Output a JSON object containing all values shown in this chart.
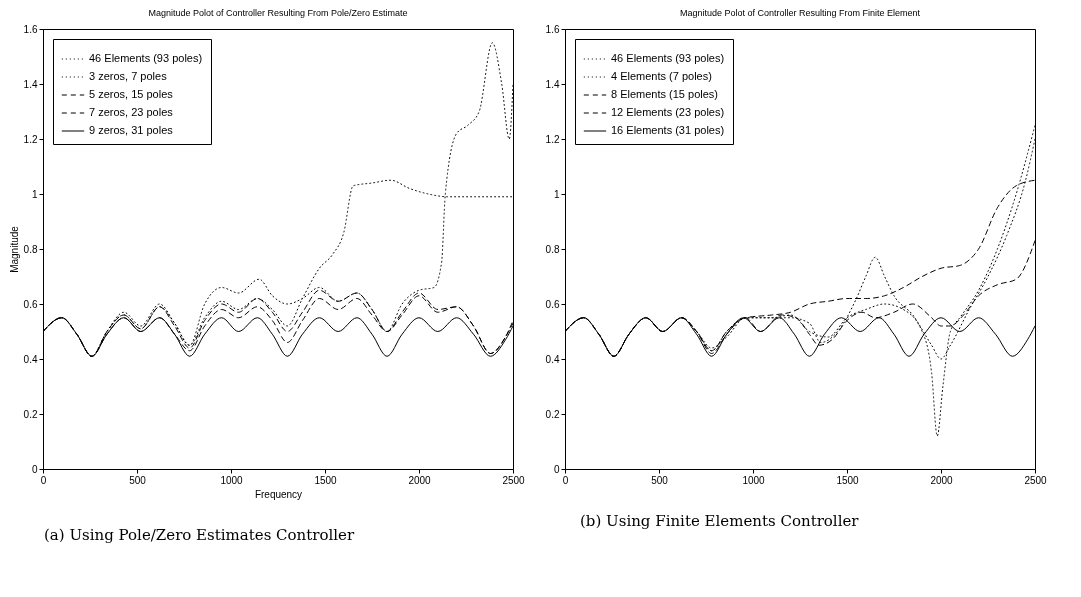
{
  "chart_data": [
    {
      "type": "line",
      "title": "Magnitude Polot of Controller Resulting From Pole/Zero Estimate",
      "xlabel": "Frequency",
      "ylabel": "Magnitude",
      "annotations": [
        "(a) Using Pole/Zero Estimates Controller"
      ],
      "xlim": [
        0,
        2500
      ],
      "xticks": [
        0,
        500,
        1000,
        1500,
        2000,
        2500
      ],
      "ylim": [
        0,
        1.6
      ],
      "yticks": [
        0,
        0.2,
        0.4,
        0.6,
        0.8,
        1,
        1.2,
        1.4,
        1.6
      ],
      "legend": "top left",
      "series": [
        {
          "name": "46 Elements (93 poles)",
          "color": "#000000",
          "line_style": "dotted",
          "x": [
            0,
            100,
            180,
            260,
            340,
            430,
            520,
            620,
            700,
            780,
            860,
            950,
            1040,
            1150,
            1220,
            1300,
            1380,
            1470,
            1570,
            1670,
            1750,
            1830,
            1910,
            2000,
            2080,
            2120,
            2140,
            2200,
            2260,
            2320,
            2390,
            2440,
            2480,
            2500
          ],
          "values": [
            0.5,
            0.55,
            0.49,
            0.41,
            0.5,
            0.56,
            0.51,
            0.59,
            0.53,
            0.45,
            0.6,
            0.66,
            0.64,
            0.69,
            0.63,
            0.6,
            0.62,
            0.66,
            0.61,
            0.64,
            0.58,
            0.5,
            0.6,
            0.65,
            0.66,
            0.75,
            1.0,
            1.22,
            1.25,
            1.3,
            1.55,
            1.4,
            1.2,
            1.4
          ]
        },
        {
          "name": "3 zeros, 7 poles",
          "color": "#000000",
          "line_style": "dotted",
          "x": [
            0,
            100,
            180,
            260,
            340,
            430,
            520,
            620,
            700,
            780,
            860,
            950,
            1040,
            1140,
            1220,
            1300,
            1380,
            1470,
            1540,
            1600,
            1650,
            1750,
            1850,
            1950,
            2050,
            2150,
            2300,
            2500
          ],
          "values": [
            0.5,
            0.55,
            0.49,
            0.41,
            0.5,
            0.57,
            0.52,
            0.6,
            0.53,
            0.45,
            0.55,
            0.61,
            0.58,
            0.62,
            0.58,
            0.52,
            0.62,
            0.73,
            0.78,
            0.86,
            1.03,
            1.04,
            1.05,
            1.02,
            1.0,
            0.99,
            0.99,
            0.99
          ]
        },
        {
          "name": "5 zeros, 15 poles",
          "color": "#000000",
          "line_style": "dashed",
          "x": [
            0,
            100,
            180,
            260,
            340,
            430,
            520,
            620,
            700,
            780,
            860,
            950,
            1040,
            1140,
            1220,
            1300,
            1380,
            1470,
            1570,
            1670,
            1750,
            1830,
            1910,
            2000,
            2100,
            2200,
            2290,
            2380,
            2460,
            2500
          ],
          "values": [
            0.5,
            0.55,
            0.49,
            0.41,
            0.5,
            0.56,
            0.51,
            0.59,
            0.52,
            0.44,
            0.54,
            0.6,
            0.57,
            0.62,
            0.57,
            0.5,
            0.57,
            0.65,
            0.61,
            0.64,
            0.58,
            0.5,
            0.57,
            0.64,
            0.58,
            0.59,
            0.52,
            0.42,
            0.48,
            0.54
          ]
        },
        {
          "name": "7 zeros, 23 poles",
          "color": "#000000",
          "line_style": "dashed",
          "x": [
            0,
            100,
            180,
            260,
            340,
            430,
            520,
            620,
            700,
            780,
            860,
            950,
            1040,
            1140,
            1220,
            1300,
            1380,
            1470,
            1570,
            1670,
            1750,
            1830,
            1910,
            2000,
            2100,
            2200,
            2290,
            2380,
            2460,
            2500
          ],
          "values": [
            0.5,
            0.55,
            0.49,
            0.41,
            0.49,
            0.55,
            0.5,
            0.55,
            0.49,
            0.43,
            0.52,
            0.58,
            0.55,
            0.59,
            0.54,
            0.46,
            0.54,
            0.62,
            0.58,
            0.62,
            0.56,
            0.5,
            0.56,
            0.63,
            0.57,
            0.59,
            0.52,
            0.42,
            0.48,
            0.53
          ]
        },
        {
          "name": "9 zeros, 31 poles",
          "color": "#000000",
          "line_style": "solid",
          "x": [
            0,
            100,
            180,
            260,
            340,
            430,
            520,
            620,
            700,
            780,
            860,
            950,
            1040,
            1140,
            1220,
            1300,
            1380,
            1470,
            1570,
            1670,
            1750,
            1830,
            1910,
            2000,
            2100,
            2200,
            2290,
            2380,
            2460,
            2500
          ],
          "values": [
            0.5,
            0.55,
            0.49,
            0.41,
            0.49,
            0.55,
            0.5,
            0.55,
            0.49,
            0.41,
            0.49,
            0.55,
            0.5,
            0.55,
            0.49,
            0.41,
            0.49,
            0.55,
            0.5,
            0.55,
            0.49,
            0.41,
            0.49,
            0.55,
            0.5,
            0.55,
            0.49,
            0.41,
            0.47,
            0.52
          ]
        }
      ]
    },
    {
      "type": "line",
      "title": "Magnitude Polot of Controller Resulting From Finite Element",
      "annotations": [
        "(b) Using Finite Elements Controller"
      ],
      "xlim": [
        0,
        2500
      ],
      "xticks": [
        0,
        500,
        1000,
        1500,
        2000,
        2500
      ],
      "ylim": [
        0,
        1.6
      ],
      "yticks": [
        0,
        0.2,
        0.4,
        0.6,
        0.8,
        1,
        1.2,
        1.4,
        1.6
      ],
      "legend": "top left",
      "series": [
        {
          "name": "46 Elements (93 poles)",
          "color": "#000000",
          "line_style": "dotted",
          "x": [
            0,
            100,
            180,
            260,
            340,
            430,
            520,
            620,
            700,
            780,
            860,
            960,
            1100,
            1200,
            1300,
            1400,
            1500,
            1600,
            1700,
            1800,
            1900,
            1950,
            1980,
            2010,
            2050,
            2100,
            2200,
            2300,
            2400,
            2500
          ],
          "values": [
            0.5,
            0.55,
            0.49,
            0.41,
            0.49,
            0.55,
            0.5,
            0.55,
            0.5,
            0.43,
            0.5,
            0.55,
            0.55,
            0.56,
            0.5,
            0.48,
            0.55,
            0.58,
            0.6,
            0.58,
            0.5,
            0.35,
            0.12,
            0.3,
            0.5,
            0.55,
            0.65,
            0.8,
            1.0,
            1.25
          ]
        },
        {
          "name": "4 Elements (7 poles)",
          "color": "#000000",
          "line_style": "dotted",
          "x": [
            0,
            100,
            180,
            260,
            340,
            430,
            520,
            620,
            700,
            780,
            860,
            960,
            1100,
            1200,
            1300,
            1360,
            1450,
            1550,
            1600,
            1650,
            1700,
            1750,
            1850,
            1950,
            2000,
            2050,
            2150,
            2250,
            2350,
            2450,
            2500
          ],
          "values": [
            0.5,
            0.55,
            0.49,
            0.41,
            0.49,
            0.55,
            0.5,
            0.55,
            0.5,
            0.44,
            0.48,
            0.55,
            0.55,
            0.55,
            0.53,
            0.46,
            0.5,
            0.62,
            0.7,
            0.77,
            0.7,
            0.63,
            0.56,
            0.45,
            0.4,
            0.45,
            0.58,
            0.7,
            0.85,
            1.05,
            1.2
          ]
        },
        {
          "name": "8 Elements (15 poles)",
          "color": "#000000",
          "line_style": "dashed",
          "x": [
            0,
            100,
            180,
            260,
            340,
            430,
            520,
            620,
            700,
            780,
            860,
            960,
            1040,
            1150,
            1230,
            1300,
            1350,
            1420,
            1500,
            1580,
            1650,
            1750,
            1850,
            1950,
            2000,
            2050,
            2120,
            2200,
            2300,
            2400,
            2500
          ],
          "values": [
            0.5,
            0.55,
            0.49,
            0.41,
            0.49,
            0.55,
            0.5,
            0.55,
            0.5,
            0.42,
            0.49,
            0.55,
            0.5,
            0.56,
            0.55,
            0.49,
            0.45,
            0.47,
            0.54,
            0.57,
            0.55,
            0.57,
            0.6,
            0.55,
            0.52,
            0.52,
            0.56,
            0.63,
            0.67,
            0.69,
            0.83
          ]
        },
        {
          "name": "12 Elements (23 poles)",
          "color": "#000000",
          "line_style": "dashed",
          "x": [
            0,
            100,
            180,
            260,
            340,
            430,
            520,
            620,
            700,
            780,
            860,
            960,
            1100,
            1200,
            1300,
            1400,
            1500,
            1600,
            1700,
            1800,
            1900,
            2000,
            2100,
            2150,
            2200,
            2300,
            2400,
            2500
          ],
          "values": [
            0.5,
            0.55,
            0.49,
            0.41,
            0.49,
            0.55,
            0.5,
            0.55,
            0.5,
            0.43,
            0.5,
            0.55,
            0.56,
            0.57,
            0.6,
            0.61,
            0.62,
            0.62,
            0.63,
            0.66,
            0.7,
            0.73,
            0.74,
            0.76,
            0.8,
            0.95,
            1.03,
            1.05
          ]
        },
        {
          "name": "16 Elements (31 poles)",
          "color": "#000000",
          "line_style": "solid",
          "x": [
            0,
            100,
            180,
            260,
            340,
            430,
            520,
            620,
            700,
            780,
            860,
            950,
            1040,
            1140,
            1220,
            1300,
            1380,
            1470,
            1570,
            1670,
            1750,
            1830,
            1910,
            2000,
            2100,
            2200,
            2290,
            2380,
            2460,
            2500
          ],
          "values": [
            0.5,
            0.55,
            0.49,
            0.41,
            0.49,
            0.55,
            0.5,
            0.55,
            0.49,
            0.41,
            0.49,
            0.55,
            0.5,
            0.55,
            0.49,
            0.41,
            0.49,
            0.55,
            0.5,
            0.55,
            0.49,
            0.41,
            0.49,
            0.55,
            0.5,
            0.55,
            0.49,
            0.41,
            0.47,
            0.52
          ]
        }
      ]
    }
  ]
}
